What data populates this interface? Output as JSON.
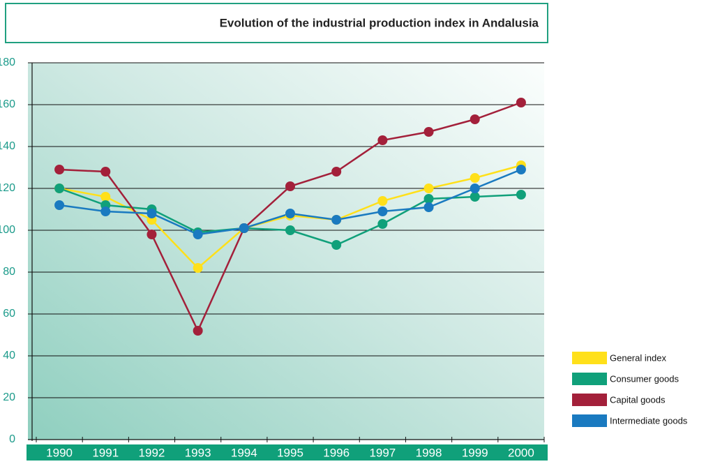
{
  "chart_data": {
    "type": "line",
    "title": "Evolution of the industrial production index in Andalusia",
    "categories": [
      "1990",
      "1991",
      "1992",
      "1993",
      "1994",
      "1995",
      "1996",
      "1997",
      "1998",
      "1999",
      "2000"
    ],
    "ylim": [
      0,
      180
    ],
    "yticks": [
      0,
      20,
      40,
      60,
      80,
      100,
      120,
      140,
      160,
      180
    ],
    "grid": true,
    "series": [
      {
        "name": "General index",
        "color": "#ffe01a",
        "values": [
          120,
          116,
          105,
          82,
          101,
          107,
          105,
          114,
          120,
          125,
          131
        ]
      },
      {
        "name": "Consumer goods",
        "color": "#10a07a",
        "values": [
          120,
          112,
          110,
          99,
          101,
          100,
          93,
          103,
          115,
          116,
          117
        ]
      },
      {
        "name": "Capital goods",
        "color": "#a3203a",
        "values": [
          129,
          128,
          98,
          52,
          101,
          121,
          128,
          143,
          147,
          153,
          161
        ]
      },
      {
        "name": "Intermediate goods",
        "color": "#1a7ac0",
        "values": [
          112,
          109,
          108,
          98,
          101,
          108,
          105,
          109,
          111,
          120,
          129
        ]
      }
    ]
  }
}
